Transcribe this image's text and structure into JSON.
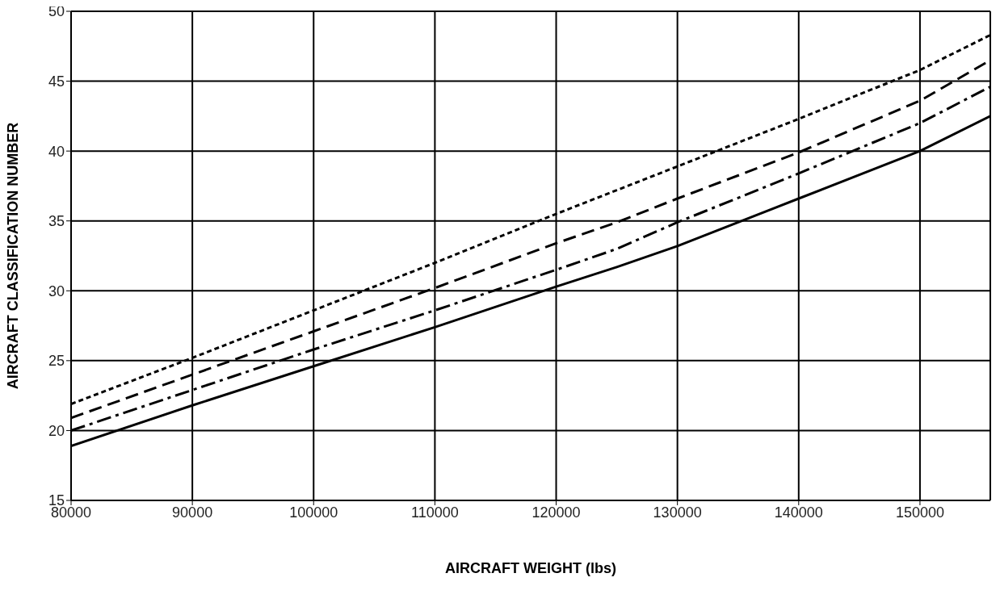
{
  "chart_data": {
    "type": "line",
    "xlabel": "AIRCRAFT WEIGHT (lbs)",
    "ylabel": "AIRCRAFT CLASSIFICATION NUMBER",
    "x": [
      80000,
      90000,
      100000,
      110000,
      120000,
      125000,
      130000,
      140000,
      150000,
      155800
    ],
    "series": [
      {
        "color": "#000000",
        "line_style": "solid",
        "values": [
          18.9,
          21.8,
          24.6,
          27.4,
          30.3,
          31.7,
          33.2,
          36.6,
          40.0,
          42.5
        ]
      },
      {
        "color": "#000000",
        "line_style": "dashdot",
        "values": [
          20.0,
          22.9,
          25.8,
          28.6,
          31.5,
          33.0,
          34.9,
          38.4,
          42.0,
          44.6
        ]
      },
      {
        "color": "#000000",
        "line_style": "dashed",
        "values": [
          20.9,
          24.0,
          27.1,
          30.2,
          33.4,
          34.9,
          36.6,
          39.9,
          43.6,
          46.5
        ]
      },
      {
        "color": "#000000",
        "line_style": "dotted",
        "values": [
          21.9,
          25.2,
          28.6,
          32.0,
          35.5,
          37.2,
          38.9,
          42.3,
          45.8,
          48.3
        ]
      }
    ],
    "xlim": [
      80000,
      155800
    ],
    "xticks": [
      80000,
      90000,
      100000,
      110000,
      120000,
      130000,
      140000,
      150000
    ],
    "ylim": [
      15,
      50
    ],
    "yticks": [
      15,
      20,
      25,
      30,
      35,
      40,
      45,
      50
    ],
    "grid": true,
    "legend": false,
    "marker": "none"
  }
}
